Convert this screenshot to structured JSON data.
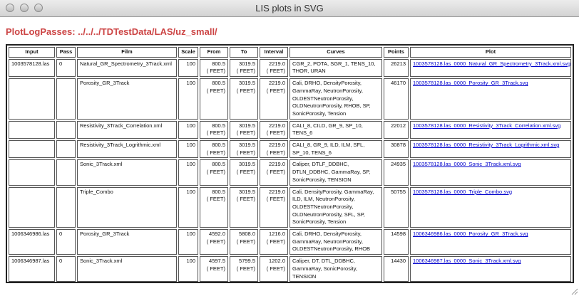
{
  "window": {
    "title": "LIS plots in SVG"
  },
  "heading": "PlotLogPasses: ../../../TDTestData/LAS/uz_small/",
  "table": {
    "headers": [
      "Input",
      "Pass",
      "Film",
      "Scale",
      "From",
      "To",
      "Interval",
      "Curves",
      "Points",
      "Plot"
    ],
    "rows": [
      {
        "input": "1003578128.las",
        "pass": "0",
        "film": "Natural_GR_Spectrometry_3Track.xml",
        "scale": "100",
        "from": "800.5",
        "to": "3019.5",
        "interval": "2219.0",
        "unit": "( FEET)",
        "curves": "CGR_2, POTA, SGR_1, TENS_10, THOR, URAN",
        "points": "26213",
        "plot": "1003578128.las_0000_Natural_GR_Spectrometry_3Track.xml.svg"
      },
      {
        "input": "",
        "pass": "",
        "film": "Porosity_GR_3Track",
        "scale": "100",
        "from": "800.5",
        "to": "3019.5",
        "interval": "2219.0",
        "unit": "( FEET)",
        "curves": "Cali, DRHO, DensityPorosity, GammaRay, NeutronPorosity, OLDESTNeutronPorosity, OLDNeutronPorosity, RHOB, SP, SonicPorosity, Tension",
        "points": "46170",
        "plot": "1003578128.las_0000_Porosity_GR_3Track.svg"
      },
      {
        "input": "",
        "pass": "",
        "film": "Resistivity_3Track_Correlation.xml",
        "scale": "100",
        "from": "800.5",
        "to": "3019.5",
        "interval": "2219.0",
        "unit": "( FEET)",
        "curves": "CALI_8, CILD, GR_9, SP_10, TENS_6",
        "points": "22012",
        "plot": "1003578128.las_0000_Resistivity_3Track_Correlation.xml.svg"
      },
      {
        "input": "",
        "pass": "",
        "film": "Resistivity_3Track_Logrithmic.xml",
        "scale": "100",
        "from": "800.5",
        "to": "3019.5",
        "interval": "2219.0",
        "unit": "( FEET)",
        "curves": "CALI_8, GR_9, ILD, ILM, SFL, SP_10, TENS_6",
        "points": "30878",
        "plot": "1003578128.las_0000_Resistivity_3Track_Logrithmic.xml.svg"
      },
      {
        "input": "",
        "pass": "",
        "film": "Sonic_3Track.xml",
        "scale": "100",
        "from": "800.5",
        "to": "3019.5",
        "interval": "2219.0",
        "unit": "( FEET)",
        "curves": "Caliper, DTLF_DDBHC, DTLN_DDBHC, GammaRay, SP, SonicPorosity, TENSION",
        "points": "24935",
        "plot": "1003578128.las_0000_Sonic_3Track.xml.svg"
      },
      {
        "input": "",
        "pass": "",
        "film": "Triple_Combo",
        "scale": "100",
        "from": "800.5",
        "to": "3019.5",
        "interval": "2219.0",
        "unit": "( FEET)",
        "curves": "Cali, DensityPorosity, GammaRay, ILD, ILM, NeutronPorosity, OLDESTNeutronPorosity, OLDNeutronPorosity, SFL, SP, SonicPorosity, Tension",
        "points": "50755",
        "plot": "1003578128.las_0000_Triple_Combo.svg"
      },
      {
        "input": "1006346986.las",
        "pass": "0",
        "film": "Porosity_GR_3Track",
        "scale": "100",
        "from": "4592.0",
        "to": "5808.0",
        "interval": "1216.0",
        "unit": "( FEET)",
        "curves": "Cali, DRHO, DensityPorosity, GammaRay, NeutronPorosity, OLDESTNeutronPorosity, RHOB",
        "points": "14598",
        "plot": "1006346986.las_0000_Porosity_GR_3Track.svg"
      },
      {
        "input": "1006346987.las",
        "pass": "0",
        "film": "Sonic_3Track.xml",
        "scale": "100",
        "from": "4597.5",
        "to": "5799.5",
        "interval": "1202.0",
        "unit": "( FEET)",
        "curves": "Caliper, DT, DTL_DDBHC, GammaRay, SonicPorosity, TENSION",
        "points": "14430",
        "plot": "1006346987.las_0000_Sonic_3Track.xml.svg"
      }
    ]
  }
}
